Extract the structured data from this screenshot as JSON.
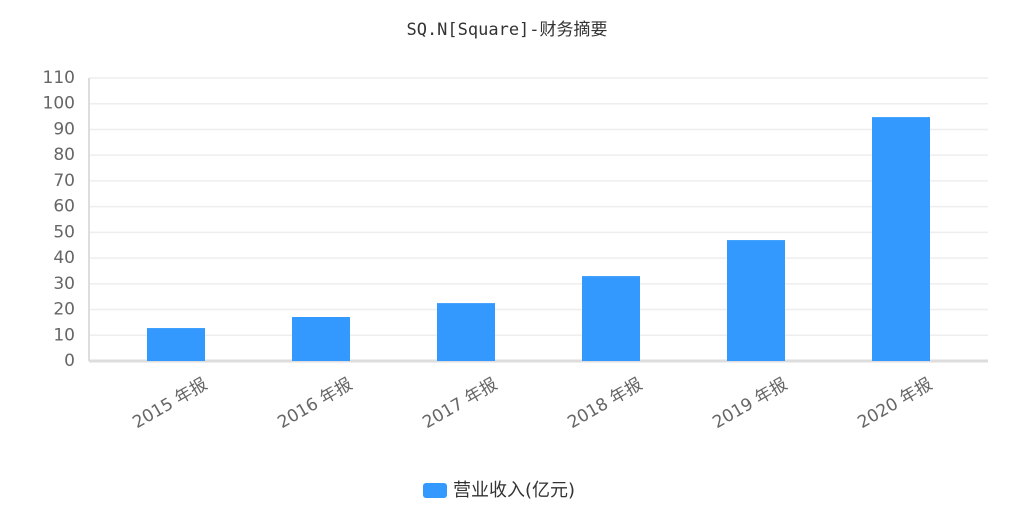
{
  "chart_data": {
    "type": "bar",
    "title": "SQ.N[Square]-财务摘要",
    "categories": [
      "2015 年报",
      "2016 年报",
      "2017 年报",
      "2018 年报",
      "2019 年报",
      "2020 年报"
    ],
    "series": [
      {
        "name": "营业收入(亿元)",
        "color": "#3399ff",
        "values": [
          12.8,
          17.1,
          22.5,
          33,
          47,
          94.8
        ]
      }
    ],
    "ylim": [
      0,
      110
    ],
    "yticks": [
      0,
      10,
      20,
      30,
      40,
      50,
      60,
      70,
      80,
      90,
      100,
      110
    ],
    "grid": true,
    "legend": "bottom"
  }
}
